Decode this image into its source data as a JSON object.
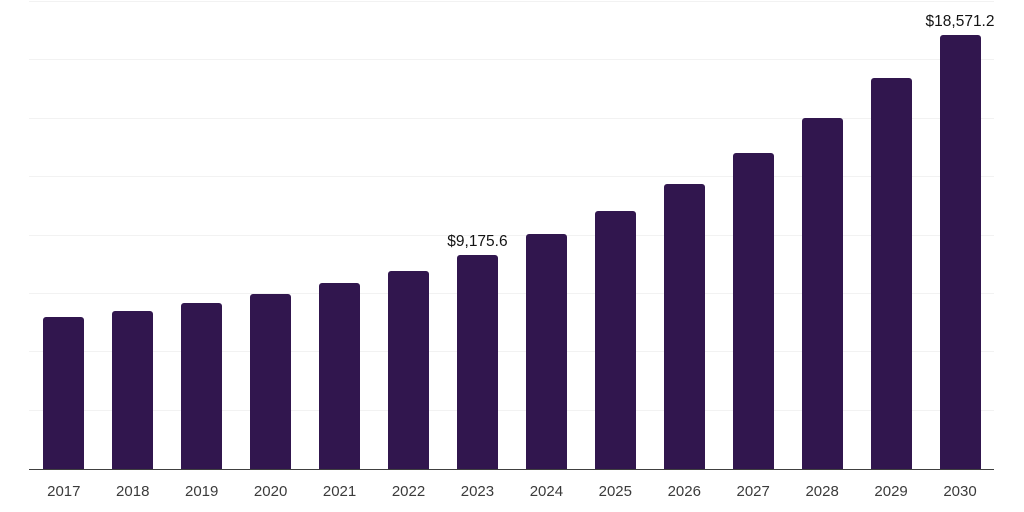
{
  "chart_data": {
    "type": "bar",
    "title": "",
    "xlabel": "",
    "ylabel": "",
    "categories": [
      "2017",
      "2018",
      "2019",
      "2020",
      "2021",
      "2022",
      "2023",
      "2024",
      "2025",
      "2026",
      "2027",
      "2028",
      "2029",
      "2030"
    ],
    "values": [
      6500,
      6760,
      7100,
      7480,
      7960,
      8490,
      9175.6,
      10060,
      11050,
      12200,
      13530,
      15050,
      16740,
      18571.2
    ],
    "value_labels": [
      "",
      "",
      "",
      "",
      "",
      "",
      "$9,175.6",
      "",
      "",
      "",
      "",
      "",
      "",
      "$18,571.2"
    ],
    "ylim": [
      0,
      20000
    ],
    "gridline_interval": 2500,
    "grid": "horizontal",
    "legend_position": "none",
    "y_axis_ticks_visible": false,
    "colors": {
      "bar": "#31164e",
      "axis_line": "#404040",
      "grid_line": "#f2f2f2",
      "tick_label": "#3b3b3b",
      "value_label": "#141414",
      "background": "#ffffff"
    }
  }
}
